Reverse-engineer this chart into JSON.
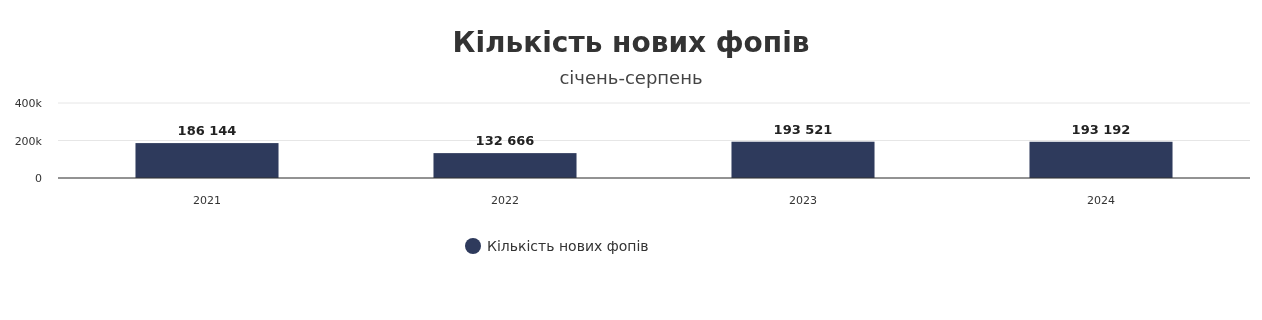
{
  "chart_data": {
    "type": "bar",
    "title": "Кількість нових фопів",
    "subtitle": "січень-серпень",
    "categories": [
      "2021",
      "2022",
      "2023",
      "2024"
    ],
    "series": [
      {
        "name": "Кількість нових фопів",
        "color": "#2e3a5c",
        "values": [
          186144,
          132666,
          193521,
          193192
        ],
        "value_labels": [
          "186 144",
          "132 666",
          "193 521",
          "193 192"
        ]
      }
    ],
    "ylim": [
      0,
      400000
    ],
    "yticks": [
      0,
      {
        "value": 200000,
        "label": "200k"
      },
      {
        "value": 400000,
        "label": "400k"
      }
    ],
    "grid": "y",
    "legend": "bottom",
    "marker": "circle"
  }
}
